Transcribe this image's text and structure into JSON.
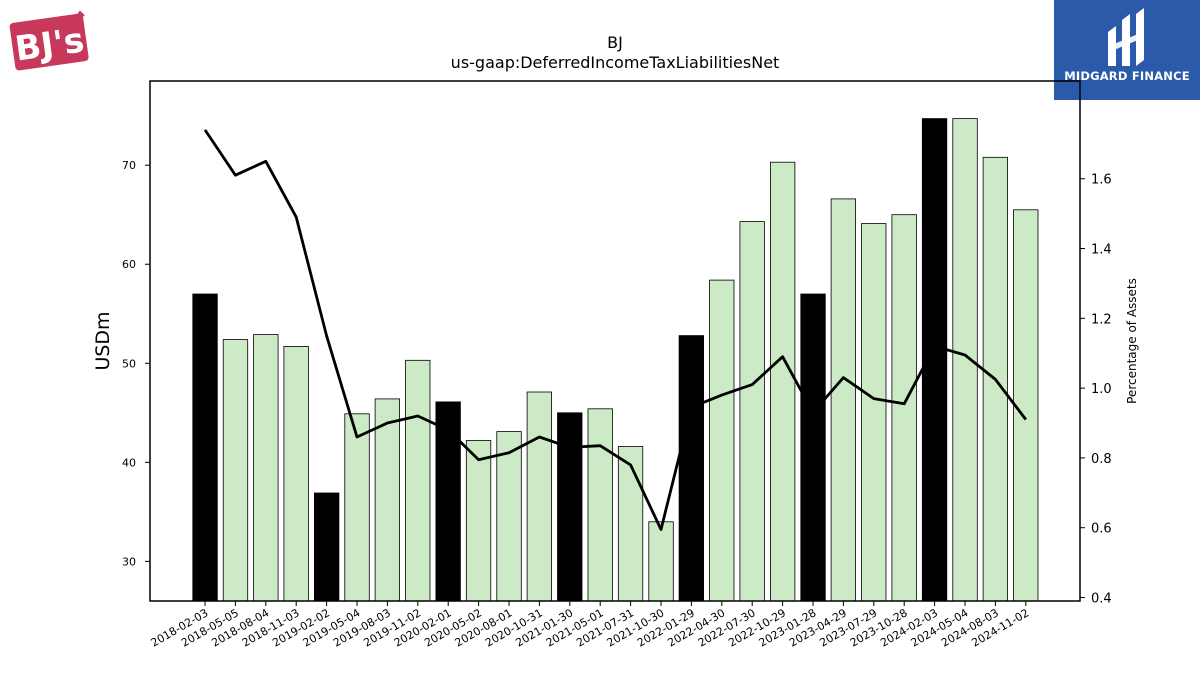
{
  "logos": {
    "left": {
      "name": "BJ's",
      "color": "#c8385a"
    },
    "right": {
      "name": "MIDGARD FINANCE",
      "color": "#2b5aab"
    }
  },
  "chart_data": {
    "type": "bar",
    "title": "BJ",
    "subtitle": "us-gaap:DeferredIncomeTaxLiabilitiesNet",
    "ylabel": "USDm",
    "y2label": "Percentage of Assets",
    "ylim": [
      26,
      78.5
    ],
    "y2lim": [
      0.39,
      1.88
    ],
    "yticks": [
      30,
      40,
      50,
      60,
      70
    ],
    "y2ticks": [
      0.4,
      0.6,
      0.8,
      1.0,
      1.2,
      1.4,
      1.6
    ],
    "categories": [
      "2018-02-03",
      "2018-05-05",
      "2018-08-04",
      "2018-11-03",
      "2019-02-02",
      "2019-05-04",
      "2019-08-03",
      "2019-11-02",
      "2020-02-01",
      "2020-05-02",
      "2020-08-01",
      "2020-10-31",
      "2021-01-30",
      "2021-05-01",
      "2021-07-31",
      "2021-10-30",
      "2022-01-29",
      "2022-04-30",
      "2022-07-30",
      "2022-10-29",
      "2023-01-28",
      "2023-04-29",
      "2023-07-29",
      "2023-10-28",
      "2024-02-03",
      "2024-05-04",
      "2024-08-03",
      "2024-11-02"
    ],
    "series": [
      {
        "type": "bar",
        "values": [
          57.0,
          52.4,
          52.9,
          51.7,
          36.9,
          44.9,
          46.4,
          50.3,
          46.1,
          42.2,
          43.1,
          47.1,
          45.0,
          45.4,
          41.6,
          34.0,
          52.8,
          58.4,
          64.3,
          70.3,
          57.0,
          66.6,
          64.1,
          65.0,
          74.7,
          74.7,
          70.8,
          65.5
        ]
      },
      {
        "type": "line",
        "axis": "secondary",
        "values": [
          1.74,
          1.61,
          1.65,
          1.49,
          1.15,
          0.86,
          0.9,
          0.92,
          0.88,
          0.795,
          0.815,
          0.86,
          0.83,
          0.835,
          0.78,
          0.595,
          0.945,
          0.98,
          1.01,
          1.09,
          0.93,
          1.03,
          0.97,
          0.955,
          1.12,
          1.095,
          1.025,
          0.91
        ]
      }
    ],
    "bar_colors": {
      "fiscal_year_end": "#000000",
      "quarter": "#cdeac7"
    },
    "line_color": "#000000",
    "grid": false
  }
}
